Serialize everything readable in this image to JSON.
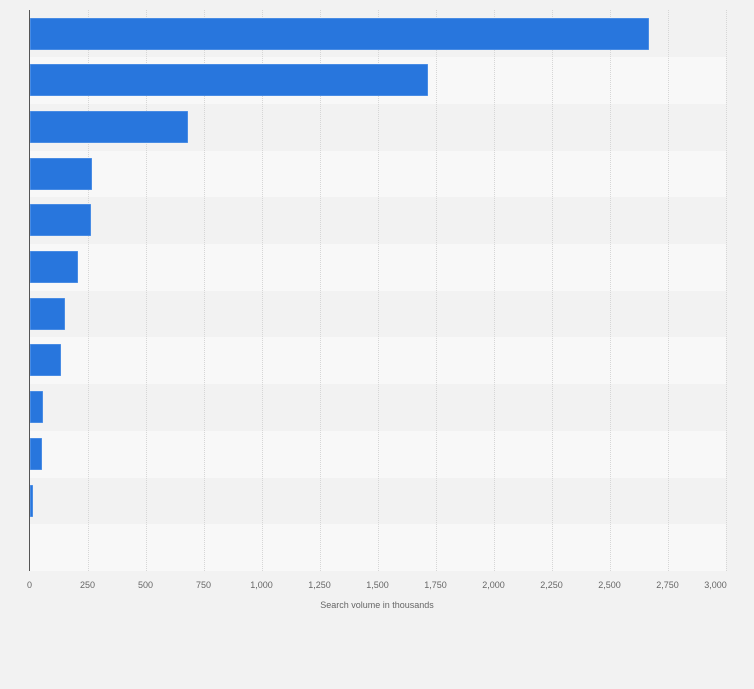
{
  "chart_data": {
    "type": "bar",
    "orientation": "horizontal",
    "title": "",
    "xlabel": "Search volume in thousands",
    "ylabel": "",
    "categories": [
      "",
      "",
      "",
      "",
      "",
      "",
      "",
      "",
      "",
      "",
      "",
      ""
    ],
    "values": [
      2670,
      1716,
      679,
      266,
      262,
      205,
      150,
      133,
      58,
      51,
      11,
      0
    ],
    "xlim": [
      0,
      3000
    ],
    "xticks": [
      0,
      250,
      500,
      750,
      1000,
      1250,
      1500,
      1750,
      2000,
      2250,
      2500,
      2750,
      3000
    ],
    "xtick_labels": [
      "0",
      "250",
      "500",
      "750",
      "1,000",
      "1,250",
      "1,500",
      "1,750",
      "2,000",
      "2,250",
      "2,500",
      "2,750",
      "3,000"
    ],
    "grid": true,
    "legend": null,
    "bar_color": "#2876dd"
  },
  "colors": {
    "bar": "#2876dd",
    "background": "#f2f2f2",
    "band_light": "#f8f8f8",
    "band_dark": "#f2f2f2",
    "axis": "#555555",
    "text": "#666666"
  }
}
